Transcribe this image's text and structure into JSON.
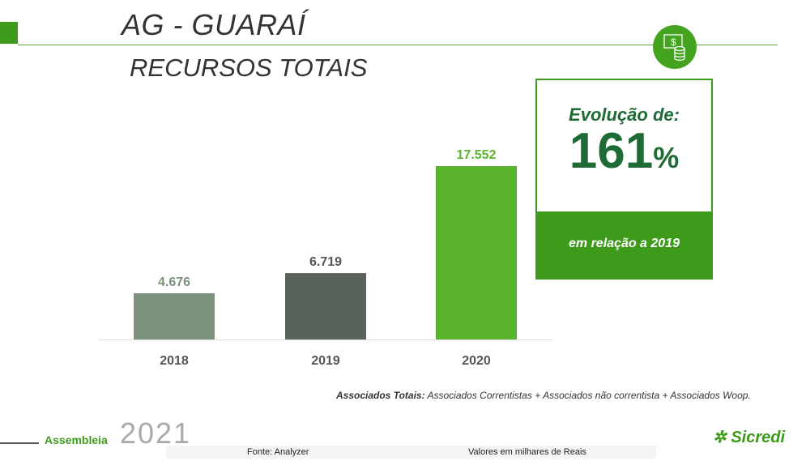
{
  "header": {
    "title": "AG - GUARAÍ",
    "subtitle": "RECURSOS TOTAIS",
    "icon": "money-coins-icon"
  },
  "evolution": {
    "label": "Evolução de:",
    "value": "161",
    "unit": "%",
    "footer": "em relação a 2019"
  },
  "chart_data": {
    "type": "bar",
    "categories": [
      "2018",
      "2019",
      "2020"
    ],
    "values": [
      4676,
      6719,
      17552
    ],
    "labels": [
      "4.676",
      "6.719",
      "17.552"
    ],
    "colors": [
      "#7b917b",
      "#5a635a",
      "#5ab42e"
    ],
    "label_colors": [
      "#7b917b",
      "#555555",
      "#5ab42e"
    ],
    "title": "RECURSOS TOTAIS",
    "xlabel": "",
    "ylabel": "",
    "ylim": [
      0,
      17552
    ]
  },
  "note": {
    "bold": "Associados Totais:",
    "text": " Associados Correntistas + Associados não correntista + Associados Woop."
  },
  "footer": {
    "assembleia": "Assembleia",
    "year": "2021",
    "source": "Fonte: Analyzer",
    "units": "Valores em milhares de Reais",
    "brand": "Sicredi"
  }
}
